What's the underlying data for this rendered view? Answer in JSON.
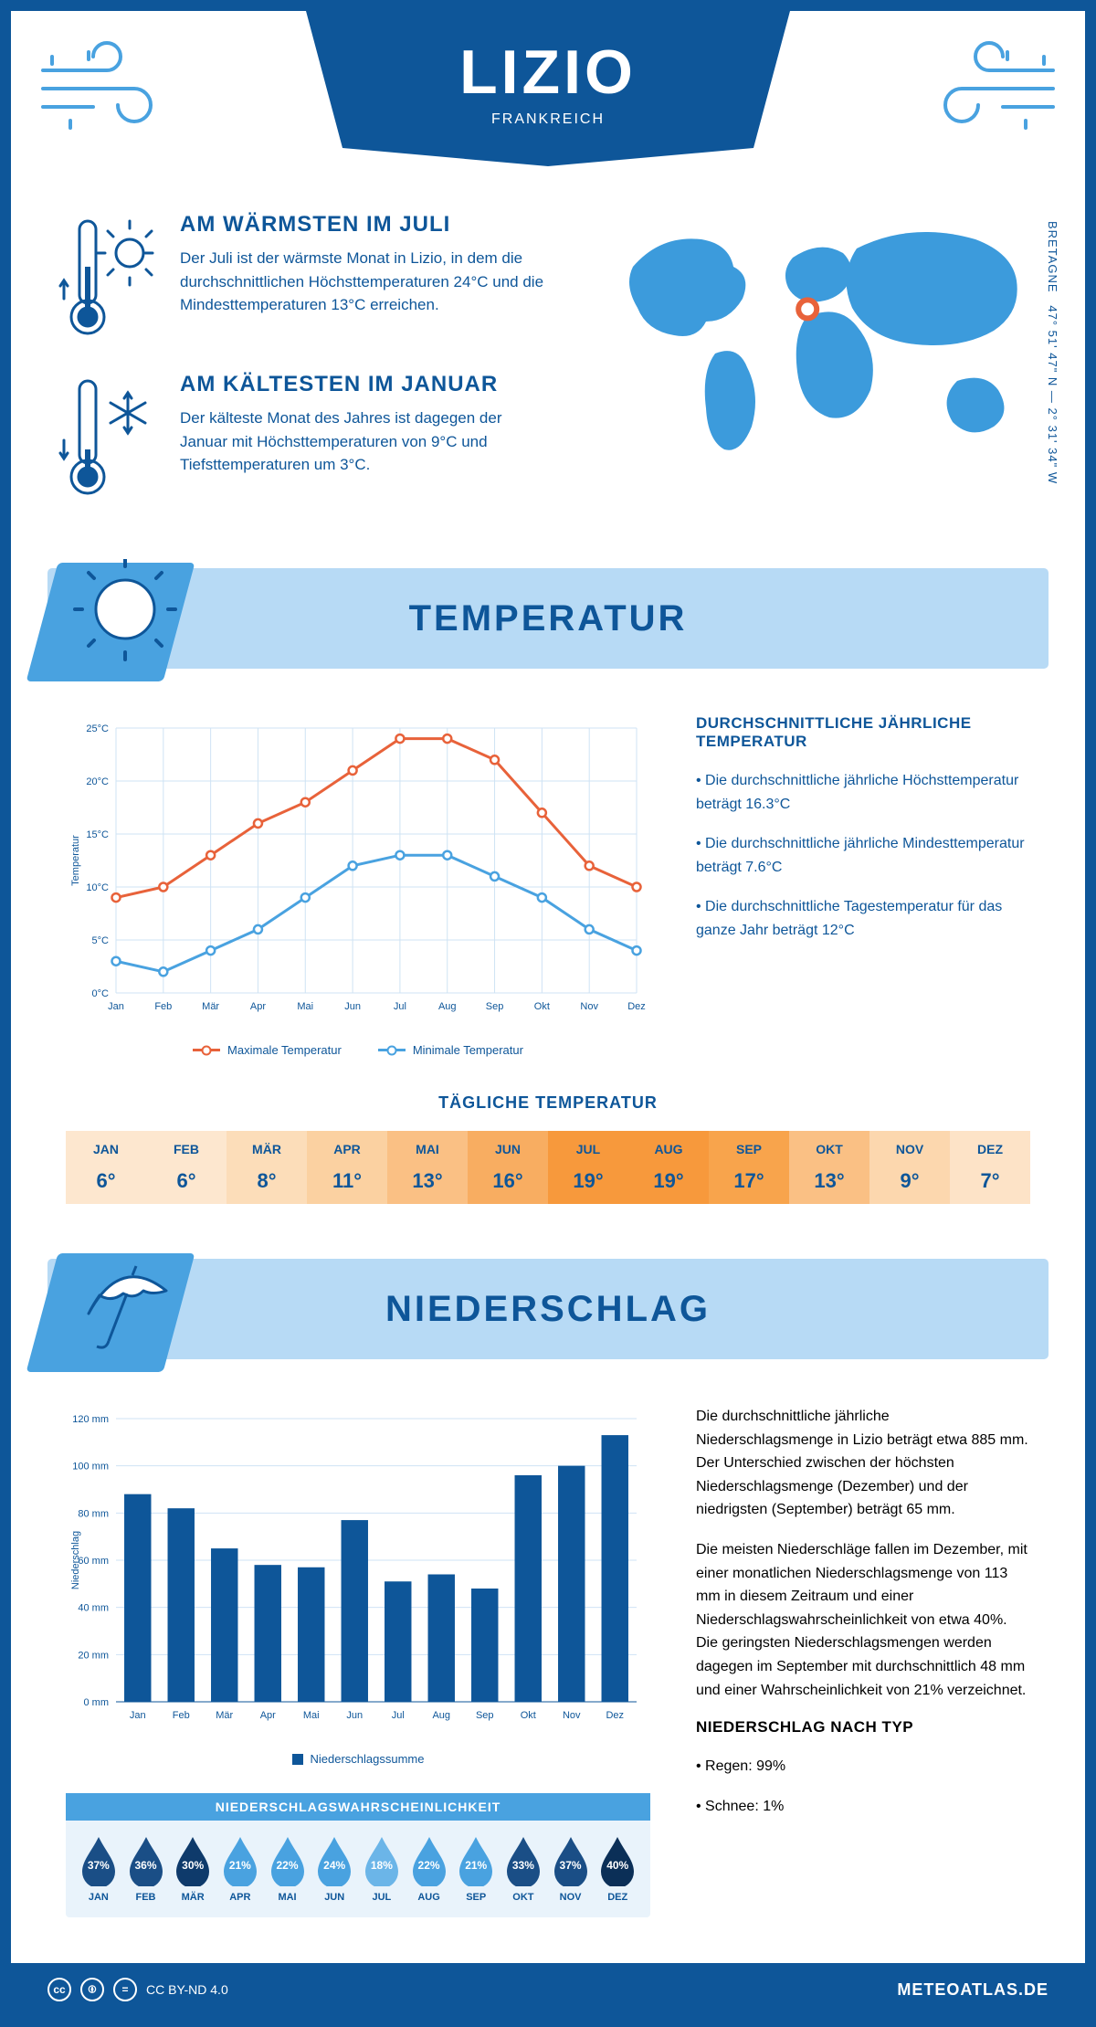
{
  "header": {
    "city": "LIZIO",
    "country": "FRANKREICH"
  },
  "coords": {
    "region": "BRETAGNE",
    "lat": "47° 51' 47\" N",
    "lon": "2° 31' 34\" W"
  },
  "marker": {
    "cx_pct": 46,
    "cy_pct": 38
  },
  "facts": {
    "warm": {
      "title": "AM WÄRMSTEN IM JULI",
      "text": "Der Juli ist der wärmste Monat in Lizio, in dem die durchschnittlichen Höchsttemperaturen 24°C und die Mindesttemperaturen 13°C erreichen."
    },
    "cold": {
      "title": "AM KÄLTESTEN IM JANUAR",
      "text": "Der kälteste Monat des Jahres ist dagegen der Januar mit Höchsttemperaturen von 9°C und Tiefsttemperaturen um 3°C."
    }
  },
  "sections": {
    "temp": "TEMPERATUR",
    "precip": "NIEDERSCHLAG"
  },
  "months": [
    "Jan",
    "Feb",
    "Mär",
    "Apr",
    "Mai",
    "Jun",
    "Jul",
    "Aug",
    "Sep",
    "Okt",
    "Nov",
    "Dez"
  ],
  "months_upper": [
    "JAN",
    "FEB",
    "MÄR",
    "APR",
    "MAI",
    "JUN",
    "JUL",
    "AUG",
    "SEP",
    "OKT",
    "NOV",
    "DEZ"
  ],
  "temp_chart": {
    "type": "line",
    "ylabel": "Temperatur",
    "ylim": [
      0,
      25
    ],
    "ytick_step": 5,
    "y_unit": "°C",
    "series": {
      "max": {
        "label": "Maximale Temperatur",
        "color": "#e8623a",
        "values": [
          9,
          10,
          13,
          16,
          18,
          21,
          24,
          24,
          22,
          17,
          12,
          10
        ]
      },
      "min": {
        "label": "Minimale Temperatur",
        "color": "#49a2e0",
        "values": [
          3,
          2,
          4,
          6,
          9,
          12,
          13,
          13,
          11,
          9,
          6,
          4
        ]
      }
    }
  },
  "temp_desc": {
    "title": "DURCHSCHNITTLICHE JÄHRLICHE TEMPERATUR",
    "bullets": [
      "• Die durchschnittliche jährliche Höchsttemperatur beträgt 16.3°C",
      "• Die durchschnittliche jährliche Mindesttemperatur beträgt 7.6°C",
      "• Die durchschnittliche Tagestemperatur für das ganze Jahr beträgt 12°C"
    ]
  },
  "daily_temp": {
    "title": "TÄGLICHE TEMPERATUR",
    "values": [
      6,
      6,
      8,
      11,
      13,
      16,
      19,
      19,
      17,
      13,
      9,
      7
    ],
    "colors": [
      "#fde7cf",
      "#fde7cf",
      "#fcddb9",
      "#fbd1a1",
      "#fac084",
      "#f8ad61",
      "#f7993c",
      "#f7993c",
      "#f8a44c",
      "#fac084",
      "#fcd7ae",
      "#fde3c7"
    ]
  },
  "precip_chart": {
    "type": "bar",
    "ylabel": "Niederschlag",
    "ylim": [
      0,
      120
    ],
    "ytick_step": 20,
    "y_unit": " mm",
    "legend": "Niederschlagssumme",
    "color": "#0e5699",
    "values": [
      88,
      82,
      65,
      58,
      57,
      77,
      51,
      54,
      48,
      96,
      100,
      113
    ]
  },
  "precip_desc": {
    "p1": "Die durchschnittliche jährliche Niederschlagsmenge in Lizio beträgt etwa 885 mm. Der Unterschied zwischen der höchsten Niederschlagsmenge (Dezember) und der niedrigsten (September) beträgt 65 mm.",
    "p2": "Die meisten Niederschläge fallen im Dezember, mit einer monatlichen Niederschlagsmenge von 113 mm in diesem Zeitraum und einer Niederschlagswahrscheinlichkeit von etwa 40%. Die geringsten Niederschlagsmengen werden dagegen im September mit durchschnittlich 48 mm und einer Wahrscheinlichkeit von 21% verzeichnet.",
    "type_title": "NIEDERSCHLAG NACH TYP",
    "type_items": [
      "• Regen: 99%",
      "• Schnee: 1%"
    ]
  },
  "precip_prob": {
    "title": "NIEDERSCHLAGSWAHRSCHEINLICHKEIT",
    "values": [
      37,
      36,
      30,
      21,
      22,
      24,
      18,
      22,
      21,
      33,
      37,
      40
    ],
    "colors": [
      "#1a4e86",
      "#1a4e86",
      "#0e3a6b",
      "#49a2e0",
      "#49a2e0",
      "#49a2e0",
      "#6bb5e8",
      "#49a2e0",
      "#49a2e0",
      "#1a4e86",
      "#1a4e86",
      "#0b2f57"
    ]
  },
  "footer": {
    "license": "CC BY-ND 4.0",
    "site": "METEOATLAS.DE"
  }
}
